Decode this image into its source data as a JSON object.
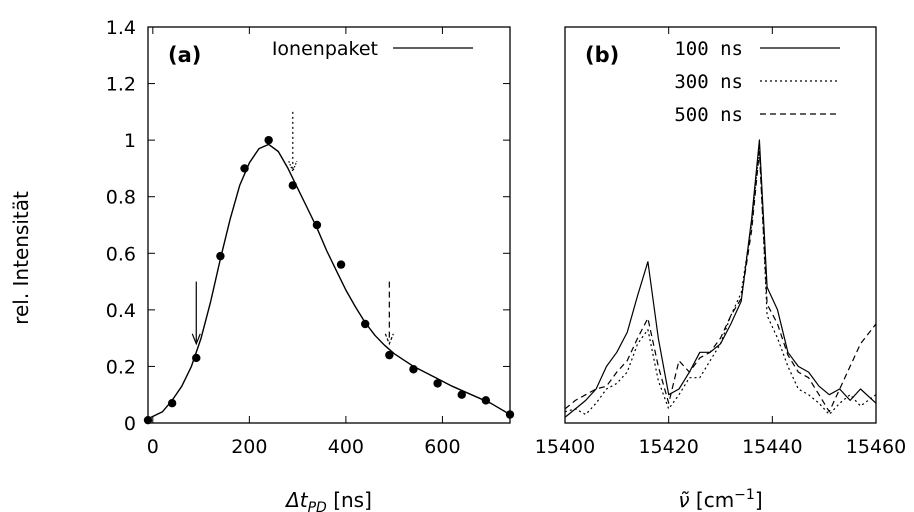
{
  "figure": {
    "ylabel": "rel. Intensität"
  },
  "chart_data": [
    {
      "type": "scatter",
      "panel": "(a)",
      "xlabel_main": "Δt",
      "xlabel_sub": "PD",
      "xlabel_unit": "[ns]",
      "xlim": [
        -10,
        740
      ],
      "ylim": [
        0,
        1.4
      ],
      "xticks": [
        0,
        200,
        400,
        600
      ],
      "yticks": [
        "0",
        "0.2",
        "0.4",
        "0.6",
        "0.8",
        "1",
        "1.2",
        "1.4"
      ],
      "legend": [
        {
          "name": "Ionenpaket",
          "style": "solid"
        }
      ],
      "points": {
        "x": [
          -10,
          40,
          90,
          140,
          190,
          240,
          290,
          340,
          390,
          440,
          490,
          540,
          590,
          640,
          690,
          740
        ],
        "y": [
          0.01,
          0.07,
          0.23,
          0.59,
          0.9,
          1.0,
          0.84,
          0.7,
          0.56,
          0.35,
          0.24,
          0.19,
          0.14,
          0.1,
          0.08,
          0.03
        ]
      },
      "fit_curve": {
        "x": [
          -10,
          20,
          40,
          60,
          80,
          100,
          120,
          140,
          160,
          180,
          200,
          220,
          240,
          260,
          280,
          300,
          320,
          340,
          360,
          380,
          400,
          420,
          440,
          460,
          480,
          500,
          540,
          580,
          620,
          660,
          700,
          740
        ],
        "y": [
          0.015,
          0.04,
          0.08,
          0.13,
          0.2,
          0.3,
          0.43,
          0.58,
          0.72,
          0.84,
          0.92,
          0.97,
          0.985,
          0.96,
          0.9,
          0.83,
          0.76,
          0.69,
          0.61,
          0.54,
          0.47,
          0.41,
          0.355,
          0.31,
          0.275,
          0.245,
          0.2,
          0.165,
          0.13,
          0.1,
          0.07,
          0.03
        ]
      },
      "arrows": [
        {
          "x": 90,
          "y_from": 0.5,
          "y_to": 0.28,
          "style": "solid"
        },
        {
          "x": 290,
          "y_from": 1.1,
          "y_to": 0.89,
          "style": "dotted"
        },
        {
          "x": 490,
          "y_from": 0.5,
          "y_to": 0.28,
          "style": "dashed"
        }
      ]
    },
    {
      "type": "line",
      "panel": "(b)",
      "xlabel_main": "ν̃",
      "xlabel_unit_pre": "[cm",
      "xlabel_unit_exp": "−1",
      "xlabel_unit_post": "]",
      "xlim": [
        15400,
        15460
      ],
      "ylim": [
        0,
        1.0
      ],
      "xticks": [
        15400,
        15420,
        15440,
        15460
      ],
      "legend": [
        {
          "name": "100 ns",
          "style": "solid"
        },
        {
          "name": "300 ns",
          "style": "dotted"
        },
        {
          "name": "500 ns",
          "style": "dashed"
        }
      ],
      "x": [
        15400,
        15402,
        15404,
        15406,
        15408,
        15410,
        15412,
        15414,
        15416,
        15418,
        15420,
        15422,
        15424,
        15426,
        15428,
        15430,
        15432,
        15434,
        15436,
        15437.5,
        15439,
        15441,
        15443,
        15445,
        15447,
        15449,
        15451,
        15453,
        15455,
        15457,
        15460
      ],
      "series": [
        {
          "name": "100 ns",
          "style": "solid",
          "values": [
            0.02,
            0.05,
            0.08,
            0.12,
            0.2,
            0.25,
            0.32,
            0.45,
            0.57,
            0.3,
            0.1,
            0.12,
            0.18,
            0.25,
            0.25,
            0.28,
            0.35,
            0.43,
            0.72,
            1.0,
            0.48,
            0.4,
            0.25,
            0.2,
            0.18,
            0.13,
            0.1,
            0.12,
            0.08,
            0.12,
            0.07
          ]
        },
        {
          "name": "300 ns",
          "style": "dotted",
          "values": [
            0.04,
            0.05,
            0.03,
            0.07,
            0.12,
            0.14,
            0.18,
            0.28,
            0.33,
            0.15,
            0.05,
            0.1,
            0.16,
            0.16,
            0.22,
            0.28,
            0.38,
            0.46,
            0.7,
            0.98,
            0.38,
            0.3,
            0.2,
            0.12,
            0.1,
            0.07,
            0.03,
            0.07,
            0.1,
            0.06,
            0.1
          ]
        },
        {
          "name": "500 ns",
          "style": "dashed",
          "values": [
            0.05,
            0.08,
            0.1,
            0.12,
            0.13,
            0.18,
            0.22,
            0.3,
            0.37,
            0.2,
            0.07,
            0.22,
            0.18,
            0.23,
            0.25,
            0.3,
            0.38,
            0.44,
            0.68,
            0.96,
            0.42,
            0.35,
            0.24,
            0.18,
            0.16,
            0.1,
            0.04,
            0.12,
            0.2,
            0.28,
            0.35
          ]
        }
      ]
    }
  ]
}
